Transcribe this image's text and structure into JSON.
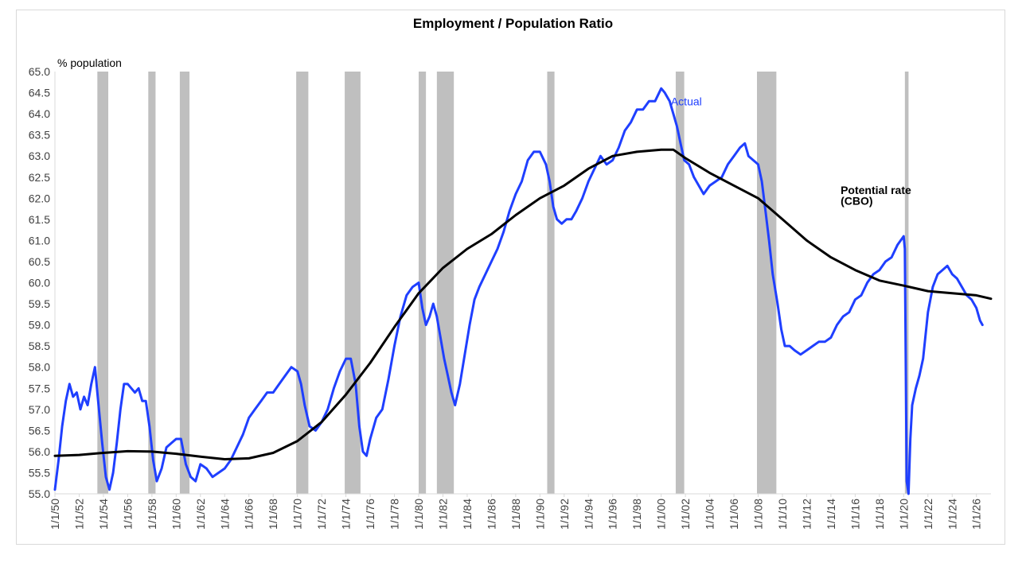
{
  "chart_data": {
    "type": "line",
    "title": "Employment / Population Ratio",
    "ylabel": "% population",
    "xlabel": "",
    "ylim": [
      55.0,
      65.0
    ],
    "xlim": [
      1950,
      2027.2
    ],
    "y_ticks": [
      "55.0",
      "55.5",
      "56.0",
      "56.5",
      "57.0",
      "57.5",
      "58.0",
      "58.5",
      "59.0",
      "59.5",
      "60.0",
      "60.5",
      "61.0",
      "61.5",
      "62.0",
      "62.5",
      "63.0",
      "63.5",
      "64.0",
      "64.5",
      "65.0"
    ],
    "x_tick_labels": [
      "1/1/50",
      "1/1/52",
      "1/1/54",
      "1/1/56",
      "1/1/58",
      "1/1/60",
      "1/1/62",
      "1/1/64",
      "1/1/66",
      "1/1/68",
      "1/1/70",
      "1/1/72",
      "1/1/74",
      "1/1/76",
      "1/1/78",
      "1/1/80",
      "1/1/82",
      "1/1/84",
      "1/1/86",
      "1/1/88",
      "1/1/90",
      "1/1/92",
      "1/1/94",
      "1/1/96",
      "1/1/98",
      "1/1/00",
      "1/1/02",
      "1/1/04",
      "1/1/06",
      "1/1/08",
      "1/1/10",
      "1/1/12",
      "1/1/14",
      "1/1/16",
      "1/1/18",
      "1/1/20",
      "1/1/22",
      "1/1/24",
      "1/1/26"
    ],
    "x_tick_years": [
      1950,
      1952,
      1954,
      1956,
      1958,
      1960,
      1962,
      1964,
      1966,
      1968,
      1970,
      1972,
      1974,
      1976,
      1978,
      1980,
      1982,
      1984,
      1986,
      1988,
      1990,
      1992,
      1994,
      1996,
      1998,
      2000,
      2002,
      2004,
      2006,
      2008,
      2010,
      2012,
      2014,
      2016,
      2018,
      2020,
      2022,
      2024,
      2026
    ],
    "recessions": [
      [
        1953.5,
        1954.4
      ],
      [
        1957.7,
        1958.3
      ],
      [
        1960.3,
        1961.1
      ],
      [
        1969.9,
        1970.9
      ],
      [
        1973.9,
        1975.2
      ],
      [
        1980.0,
        1980.6
      ],
      [
        1981.5,
        1982.9
      ],
      [
        1990.6,
        1991.2
      ],
      [
        2001.2,
        2001.9
      ],
      [
        2007.9,
        2009.5
      ],
      [
        2020.1,
        2020.4
      ]
    ],
    "series": [
      {
        "name": "Actual",
        "color": "#1f3fff",
        "points": [
          [
            1950.0,
            55.1
          ],
          [
            1950.3,
            55.8
          ],
          [
            1950.6,
            56.6
          ],
          [
            1950.9,
            57.2
          ],
          [
            1951.2,
            57.6
          ],
          [
            1951.5,
            57.3
          ],
          [
            1951.8,
            57.4
          ],
          [
            1952.1,
            57.0
          ],
          [
            1952.4,
            57.3
          ],
          [
            1952.7,
            57.1
          ],
          [
            1953.0,
            57.6
          ],
          [
            1953.3,
            58.0
          ],
          [
            1953.6,
            57.1
          ],
          [
            1953.9,
            56.2
          ],
          [
            1954.2,
            55.4
          ],
          [
            1954.5,
            55.1
          ],
          [
            1954.8,
            55.5
          ],
          [
            1955.1,
            56.2
          ],
          [
            1955.4,
            57.0
          ],
          [
            1955.7,
            57.6
          ],
          [
            1956.0,
            57.6
          ],
          [
            1956.3,
            57.5
          ],
          [
            1956.6,
            57.4
          ],
          [
            1956.9,
            57.5
          ],
          [
            1957.2,
            57.2
          ],
          [
            1957.5,
            57.2
          ],
          [
            1957.8,
            56.6
          ],
          [
            1958.1,
            55.8
          ],
          [
            1958.4,
            55.3
          ],
          [
            1958.8,
            55.6
          ],
          [
            1959.2,
            56.1
          ],
          [
            1959.6,
            56.2
          ],
          [
            1960.0,
            56.3
          ],
          [
            1960.4,
            56.3
          ],
          [
            1960.8,
            55.7
          ],
          [
            1961.2,
            55.4
          ],
          [
            1961.6,
            55.3
          ],
          [
            1962.0,
            55.7
          ],
          [
            1962.5,
            55.6
          ],
          [
            1963.0,
            55.4
          ],
          [
            1963.5,
            55.5
          ],
          [
            1964.0,
            55.6
          ],
          [
            1964.5,
            55.8
          ],
          [
            1965.0,
            56.1
          ],
          [
            1965.5,
            56.4
          ],
          [
            1966.0,
            56.8
          ],
          [
            1966.5,
            57.0
          ],
          [
            1967.0,
            57.2
          ],
          [
            1967.5,
            57.4
          ],
          [
            1968.0,
            57.4
          ],
          [
            1968.5,
            57.6
          ],
          [
            1969.0,
            57.8
          ],
          [
            1969.5,
            58.0
          ],
          [
            1970.0,
            57.9
          ],
          [
            1970.3,
            57.6
          ],
          [
            1970.6,
            57.1
          ],
          [
            1971.0,
            56.6
          ],
          [
            1971.5,
            56.5
          ],
          [
            1972.0,
            56.7
          ],
          [
            1972.5,
            57.0
          ],
          [
            1973.0,
            57.5
          ],
          [
            1973.5,
            57.9
          ],
          [
            1974.0,
            58.2
          ],
          [
            1974.4,
            58.2
          ],
          [
            1974.8,
            57.6
          ],
          [
            1975.1,
            56.6
          ],
          [
            1975.4,
            56.0
          ],
          [
            1975.7,
            55.9
          ],
          [
            1976.0,
            56.3
          ],
          [
            1976.5,
            56.8
          ],
          [
            1977.0,
            57.0
          ],
          [
            1977.5,
            57.7
          ],
          [
            1978.0,
            58.5
          ],
          [
            1978.5,
            59.2
          ],
          [
            1979.0,
            59.7
          ],
          [
            1979.5,
            59.9
          ],
          [
            1980.0,
            60.0
          ],
          [
            1980.3,
            59.4
          ],
          [
            1980.6,
            59.0
          ],
          [
            1980.9,
            59.2
          ],
          [
            1981.2,
            59.5
          ],
          [
            1981.5,
            59.2
          ],
          [
            1981.8,
            58.7
          ],
          [
            1982.1,
            58.2
          ],
          [
            1982.4,
            57.8
          ],
          [
            1982.7,
            57.4
          ],
          [
            1983.0,
            57.1
          ],
          [
            1983.4,
            57.6
          ],
          [
            1983.8,
            58.3
          ],
          [
            1984.2,
            59.0
          ],
          [
            1984.6,
            59.6
          ],
          [
            1985.0,
            59.9
          ],
          [
            1985.5,
            60.2
          ],
          [
            1986.0,
            60.5
          ],
          [
            1986.5,
            60.8
          ],
          [
            1987.0,
            61.2
          ],
          [
            1987.5,
            61.7
          ],
          [
            1988.0,
            62.1
          ],
          [
            1988.5,
            62.4
          ],
          [
            1989.0,
            62.9
          ],
          [
            1989.5,
            63.1
          ],
          [
            1990.0,
            63.1
          ],
          [
            1990.5,
            62.8
          ],
          [
            1990.8,
            62.4
          ],
          [
            1991.1,
            61.8
          ],
          [
            1991.4,
            61.5
          ],
          [
            1991.8,
            61.4
          ],
          [
            1992.2,
            61.5
          ],
          [
            1992.6,
            61.5
          ],
          [
            1993.0,
            61.7
          ],
          [
            1993.5,
            62.0
          ],
          [
            1994.0,
            62.4
          ],
          [
            1994.5,
            62.7
          ],
          [
            1995.0,
            63.0
          ],
          [
            1995.5,
            62.8
          ],
          [
            1996.0,
            62.9
          ],
          [
            1996.5,
            63.2
          ],
          [
            1997.0,
            63.6
          ],
          [
            1997.5,
            63.8
          ],
          [
            1998.0,
            64.1
          ],
          [
            1998.5,
            64.1
          ],
          [
            1999.0,
            64.3
          ],
          [
            1999.5,
            64.3
          ],
          [
            2000.0,
            64.6
          ],
          [
            2000.3,
            64.5
          ],
          [
            2000.7,
            64.3
          ],
          [
            2001.0,
            64.0
          ],
          [
            2001.3,
            63.7
          ],
          [
            2001.6,
            63.3
          ],
          [
            2001.9,
            62.9
          ],
          [
            2002.3,
            62.8
          ],
          [
            2002.7,
            62.5
          ],
          [
            2003.1,
            62.3
          ],
          [
            2003.5,
            62.1
          ],
          [
            2004.0,
            62.3
          ],
          [
            2004.5,
            62.4
          ],
          [
            2005.0,
            62.5
          ],
          [
            2005.5,
            62.8
          ],
          [
            2006.0,
            63.0
          ],
          [
            2006.5,
            63.2
          ],
          [
            2006.9,
            63.3
          ],
          [
            2007.2,
            63.0
          ],
          [
            2007.6,
            62.9
          ],
          [
            2008.0,
            62.8
          ],
          [
            2008.3,
            62.4
          ],
          [
            2008.6,
            61.7
          ],
          [
            2008.9,
            61.0
          ],
          [
            2009.2,
            60.2
          ],
          [
            2009.6,
            59.5
          ],
          [
            2009.9,
            58.9
          ],
          [
            2010.2,
            58.5
          ],
          [
            2010.6,
            58.5
          ],
          [
            2011.0,
            58.4
          ],
          [
            2011.5,
            58.3
          ],
          [
            2012.0,
            58.4
          ],
          [
            2012.5,
            58.5
          ],
          [
            2013.0,
            58.6
          ],
          [
            2013.5,
            58.6
          ],
          [
            2014.0,
            58.7
          ],
          [
            2014.5,
            59.0
          ],
          [
            2015.0,
            59.2
          ],
          [
            2015.5,
            59.3
          ],
          [
            2016.0,
            59.6
          ],
          [
            2016.5,
            59.7
          ],
          [
            2017.0,
            60.0
          ],
          [
            2017.5,
            60.2
          ],
          [
            2018.0,
            60.3
          ],
          [
            2018.5,
            60.5
          ],
          [
            2019.0,
            60.6
          ],
          [
            2019.5,
            60.9
          ],
          [
            2020.0,
            61.1
          ],
          [
            2020.1,
            60.8
          ],
          [
            2020.25,
            55.3
          ],
          [
            2020.4,
            55.0
          ],
          [
            2020.55,
            56.3
          ],
          [
            2020.7,
            57.1
          ],
          [
            2021.0,
            57.5
          ],
          [
            2021.3,
            57.8
          ],
          [
            2021.6,
            58.2
          ],
          [
            2022.0,
            59.3
          ],
          [
            2022.4,
            59.9
          ],
          [
            2022.8,
            60.2
          ],
          [
            2023.2,
            60.3
          ],
          [
            2023.6,
            60.4
          ],
          [
            2024.0,
            60.2
          ],
          [
            2024.4,
            60.1
          ],
          [
            2024.8,
            59.9
          ],
          [
            2025.2,
            59.7
          ],
          [
            2025.6,
            59.6
          ],
          [
            2026.0,
            59.4
          ],
          [
            2026.3,
            59.1
          ],
          [
            2026.5,
            59.0
          ]
        ]
      },
      {
        "name": "Potential rate (CBO)",
        "color": "#000000",
        "points": [
          [
            1950,
            55.9
          ],
          [
            1952,
            55.92
          ],
          [
            1954,
            55.97
          ],
          [
            1956,
            56.01
          ],
          [
            1958,
            56.0
          ],
          [
            1960,
            55.95
          ],
          [
            1962,
            55.88
          ],
          [
            1964,
            55.82
          ],
          [
            1966,
            55.84
          ],
          [
            1968,
            55.97
          ],
          [
            1970,
            56.25
          ],
          [
            1972,
            56.7
          ],
          [
            1974,
            57.35
          ],
          [
            1976,
            58.1
          ],
          [
            1978,
            58.95
          ],
          [
            1980,
            59.75
          ],
          [
            1982,
            60.35
          ],
          [
            1984,
            60.8
          ],
          [
            1986,
            61.15
          ],
          [
            1988,
            61.6
          ],
          [
            1990,
            62.0
          ],
          [
            1992,
            62.3
          ],
          [
            1994,
            62.7
          ],
          [
            1996,
            63.0
          ],
          [
            1998,
            63.1
          ],
          [
            2000,
            63.15
          ],
          [
            2001,
            63.15
          ],
          [
            2002,
            62.95
          ],
          [
            2004,
            62.6
          ],
          [
            2006,
            62.3
          ],
          [
            2008,
            62.0
          ],
          [
            2010,
            61.5
          ],
          [
            2012,
            61.0
          ],
          [
            2014,
            60.6
          ],
          [
            2016,
            60.3
          ],
          [
            2018,
            60.05
          ],
          [
            2020,
            59.93
          ],
          [
            2022,
            59.8
          ],
          [
            2024,
            59.75
          ],
          [
            2026,
            59.7
          ],
          [
            2027.2,
            59.62
          ]
        ]
      }
    ],
    "annotations": [
      {
        "text": "Actual",
        "x": 2000.8,
        "y": 64.2,
        "color": "#1f3fff",
        "bold": false
      },
      {
        "text": "Potential rate",
        "x": 2014.8,
        "y": 62.1,
        "color": "#000000",
        "bold": true
      },
      {
        "text": "(CBO)",
        "x": 2014.8,
        "y": 61.85,
        "color": "#000000",
        "bold": true
      }
    ],
    "grid": false,
    "legend": "none"
  }
}
